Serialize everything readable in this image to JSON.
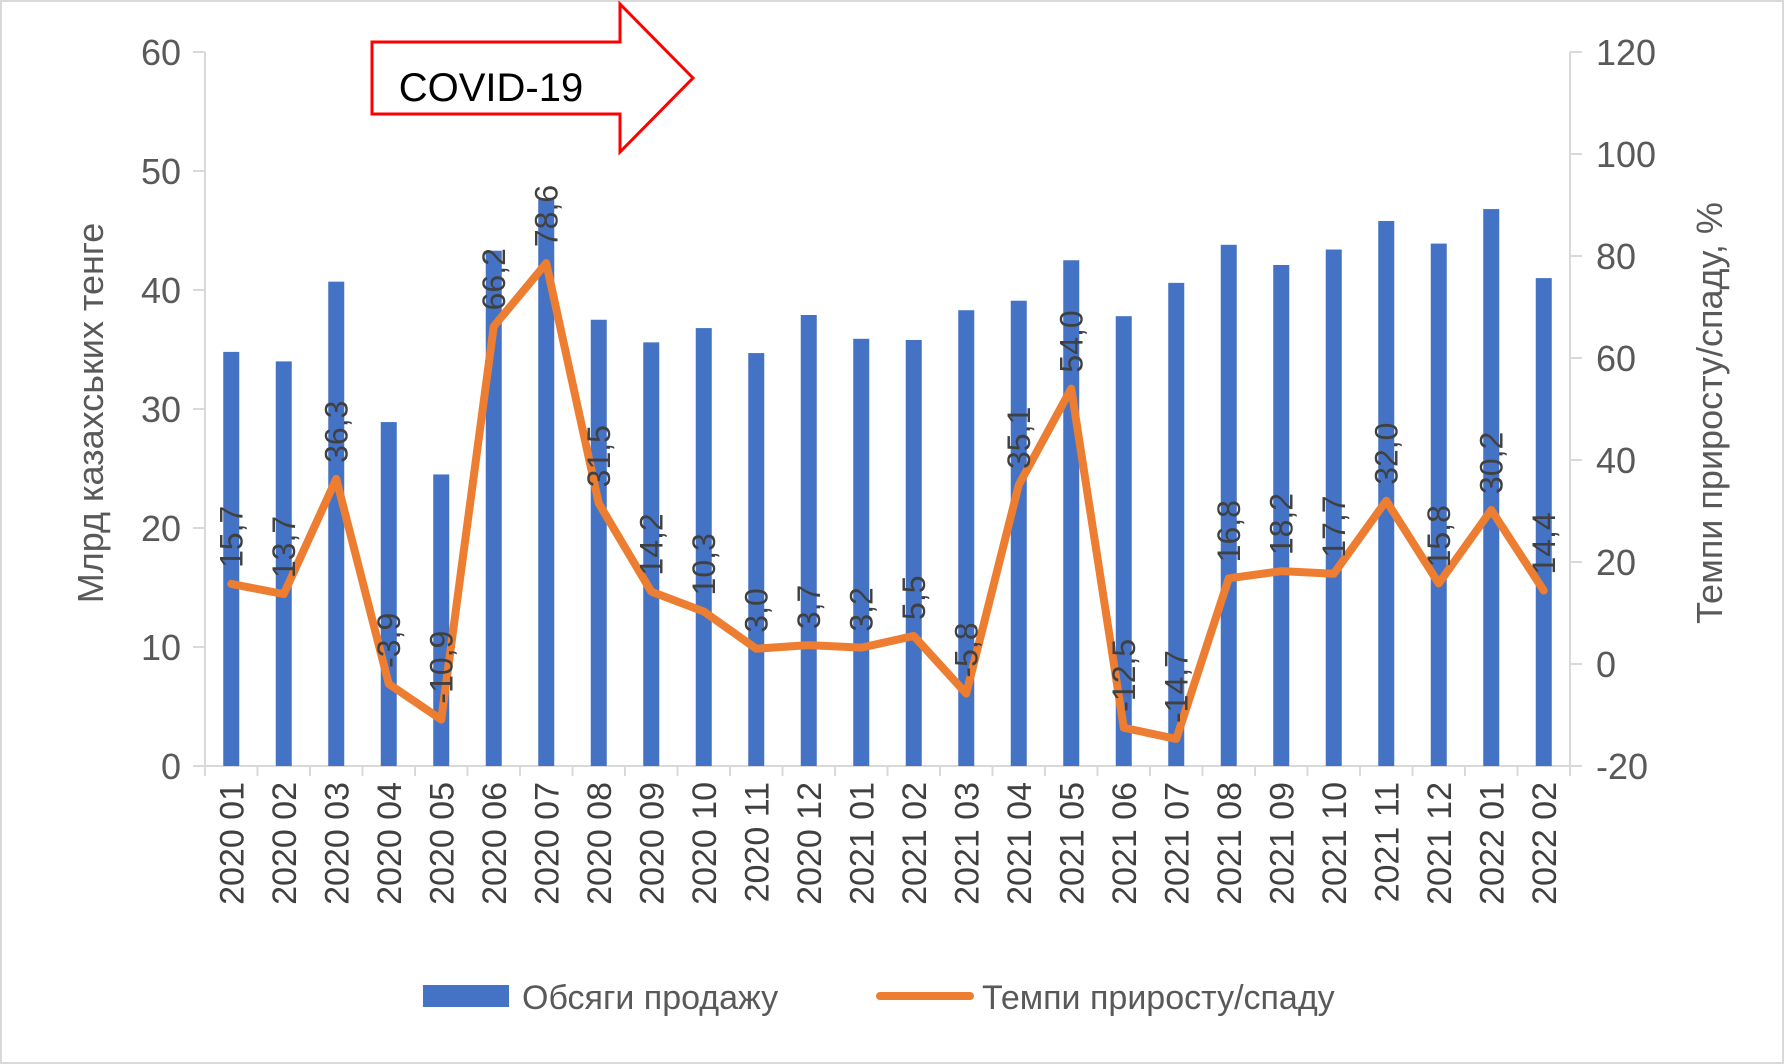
{
  "chart_data": {
    "type": "bar+line",
    "title": "",
    "annotation": "COVID-19",
    "categories": [
      "2020 01",
      "2020 02",
      "2020 03",
      "2020 04",
      "2020 05",
      "2020 06",
      "2020 07",
      "2020 08",
      "2020 09",
      "2020 10",
      "2020 11",
      "2020 12",
      "2021 01",
      "2021 02",
      "2021 03",
      "2021 04",
      "2021 05",
      "2021 06",
      "2021 07",
      "2021 08",
      "2021 09",
      "2021 10",
      "2021 11",
      "2021 12",
      "2022 01",
      "2022 02"
    ],
    "series": [
      {
        "name": "Обсяги продажу",
        "type": "bar",
        "axis": "left",
        "color": "#4472C4",
        "values": [
          34.8,
          34.0,
          40.7,
          28.9,
          24.5,
          43.3,
          47.6,
          37.5,
          35.6,
          36.8,
          34.7,
          37.9,
          35.9,
          35.8,
          38.3,
          39.1,
          42.5,
          37.8,
          40.6,
          43.8,
          42.1,
          43.4,
          45.8,
          43.9,
          46.8,
          41.0
        ]
      },
      {
        "name": "Темпи приросту/спаду",
        "type": "line",
        "axis": "right",
        "color": "#ED7D31",
        "values": [
          15.7,
          13.7,
          36.3,
          -3.9,
          -10.9,
          66.2,
          78.6,
          31.5,
          14.2,
          10.3,
          3.0,
          3.7,
          3.2,
          5.5,
          -5.8,
          35.1,
          54.0,
          -12.5,
          -14.7,
          16.8,
          18.2,
          17.7,
          32.0,
          15.8,
          30.2,
          14.4
        ],
        "labels": [
          "15,7",
          "13,7",
          "36,3",
          "-3,9",
          "-10,9",
          "66,2",
          "78,6",
          "31,5",
          "14,2",
          "10,3",
          "3,0",
          "3,7",
          "3,2",
          "5,5",
          "-5,8",
          "35,1",
          "54,0",
          "-12,5",
          "-14,7",
          "16,8",
          "18,2",
          "17,7",
          "32,0",
          "15,8",
          "30,2",
          "14,4"
        ]
      }
    ],
    "y_left": {
      "label": "Млрд казахських тенге",
      "ylim": [
        0,
        60
      ],
      "ticks": [
        "0",
        "10",
        "20",
        "30",
        "40",
        "50",
        "60"
      ]
    },
    "y_right": {
      "label": "Темпи приросту/спаду, %",
      "ylim": [
        -20,
        120
      ],
      "ticks": [
        "-20",
        "0",
        "20",
        "40",
        "60",
        "80",
        "100",
        "120"
      ]
    },
    "legend": {
      "position": "bottom"
    },
    "grid": false
  }
}
